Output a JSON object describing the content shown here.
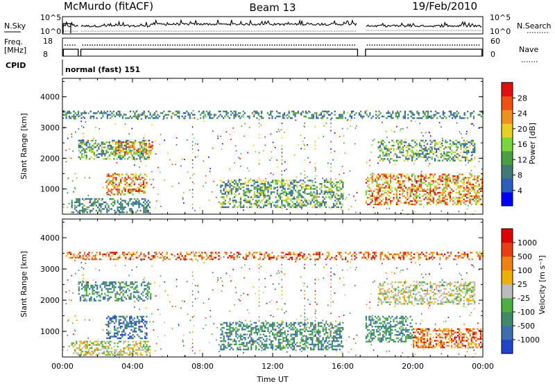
{
  "header": {
    "station": "McMurdo (fitACF)",
    "beam": "Beam 13",
    "date": "19/Feb/2010"
  },
  "noise_panel": {
    "left_label": "N.Sky",
    "right_label": "N.Search",
    "left_ticks": [
      "10^5",
      "10^0"
    ],
    "right_ticks": [
      "10^5",
      "10^0"
    ]
  },
  "freq_panel": {
    "left_label_1": "Freq.",
    "left_label_2": "[MHz]",
    "right_label": "Nave",
    "left_ticks": [
      "18",
      "8"
    ],
    "right_ticks": [
      "60",
      "0"
    ]
  },
  "cpid": {
    "label": "CPID",
    "value": "normal (fast) 151"
  },
  "chart_data": [
    {
      "type": "heatmap",
      "name": "power",
      "ylabel": "Slant Range [km]",
      "xlabel": "",
      "ylim": [
        180,
        4600
      ],
      "yticks": [
        "1000",
        "2000",
        "3000",
        "4000"
      ],
      "colorbar_label": "Power [dB]",
      "colorbar_ticks": [
        "28",
        "24",
        "20",
        "16",
        "12",
        "8",
        "4"
      ],
      "colors": [
        "#0000ff",
        "#2a5fbf",
        "#3e7a7a",
        "#4aa040",
        "#7bd63a",
        "#e8d020",
        "#f09020",
        "#f05010",
        "#e01010"
      ],
      "features": [
        {
          "t": [
            0.9,
            5.0
          ],
          "r": [
            2000,
            2600
          ],
          "level": "low-mid"
        },
        {
          "t": [
            3.0,
            5.1
          ],
          "r": [
            2150,
            2550
          ],
          "level": "high"
        },
        {
          "t": [
            2.5,
            4.8
          ],
          "r": [
            800,
            1500
          ],
          "level": "high"
        },
        {
          "t": [
            0.5,
            5.0
          ],
          "r": [
            250,
            700
          ],
          "level": "low"
        },
        {
          "t": [
            9.0,
            16.0
          ],
          "r": [
            400,
            1300
          ],
          "level": "low-mid"
        },
        {
          "t": [
            17.3,
            24.0
          ],
          "r": [
            500,
            1500
          ],
          "level": "high"
        },
        {
          "t": [
            18.0,
            23.5
          ],
          "r": [
            1900,
            2600
          ],
          "level": "low-mid"
        },
        {
          "t": [
            0.0,
            24.0
          ],
          "r": [
            3300,
            3550
          ],
          "level": "low"
        }
      ]
    },
    {
      "type": "heatmap",
      "name": "velocity",
      "ylabel": "Slant Range [km]",
      "xlabel": "Time UT",
      "xticks": [
        "00:00",
        "04:00",
        "08:00",
        "12:00",
        "16:00",
        "20:00",
        "00:00"
      ],
      "ylim": [
        180,
        4600
      ],
      "yticks": [
        "1000",
        "2000",
        "3000",
        "4000"
      ],
      "colorbar_label": "Velocity [m s⁻¹]",
      "colorbar_ticks": [
        "1000",
        "500",
        "100",
        "25",
        "-25",
        "-100",
        "-500",
        "-1000"
      ],
      "colors": [
        "#2045c8",
        "#3a70b0",
        "#3e8a6a",
        "#4cb040",
        "#bcbcbc",
        "#f0b000",
        "#f08010",
        "#e84010",
        "#e00000"
      ],
      "features": [
        {
          "t": [
            0.9,
            5.0
          ],
          "r": [
            2000,
            2600
          ],
          "level": "toward"
        },
        {
          "t": [
            2.5,
            4.8
          ],
          "r": [
            800,
            1500
          ],
          "level": "strong-toward"
        },
        {
          "t": [
            0.5,
            5.0
          ],
          "r": [
            250,
            700
          ],
          "level": "weak"
        },
        {
          "t": [
            9.0,
            16.0
          ],
          "r": [
            400,
            1300
          ],
          "level": "toward"
        },
        {
          "t": [
            17.3,
            20.0
          ],
          "r": [
            700,
            1500
          ],
          "level": "toward"
        },
        {
          "t": [
            20.0,
            24.0
          ],
          "r": [
            500,
            1100
          ],
          "level": "away"
        },
        {
          "t": [
            18.0,
            23.5
          ],
          "r": [
            1900,
            2600
          ],
          "level": "near-zero"
        },
        {
          "t": [
            0.0,
            24.0
          ],
          "r": [
            3300,
            3550
          ],
          "level": "away"
        }
      ]
    }
  ]
}
